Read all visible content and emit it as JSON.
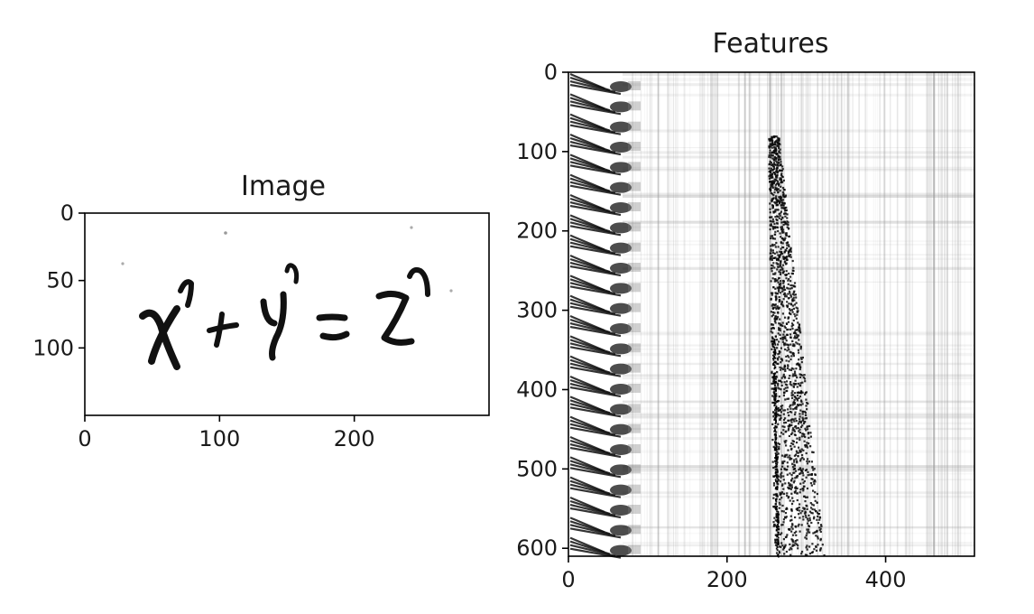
{
  "chart_data": [
    {
      "type": "image",
      "title": "Image",
      "xlim": [
        0,
        300
      ],
      "ylim": [
        150,
        0
      ],
      "xticks": [
        0,
        100,
        200
      ],
      "yticks": [
        0,
        50,
        100
      ],
      "colormap": "gray",
      "content": "x^n + y^n = z^n"
    },
    {
      "type": "heatmap",
      "title": "Features",
      "xlim": [
        0,
        512
      ],
      "ylim": [
        610,
        0
      ],
      "xticks": [
        0,
        200,
        400
      ],
      "yticks": [
        0,
        100,
        200,
        300,
        400,
        500,
        600
      ],
      "colormap": "gray"
    }
  ]
}
